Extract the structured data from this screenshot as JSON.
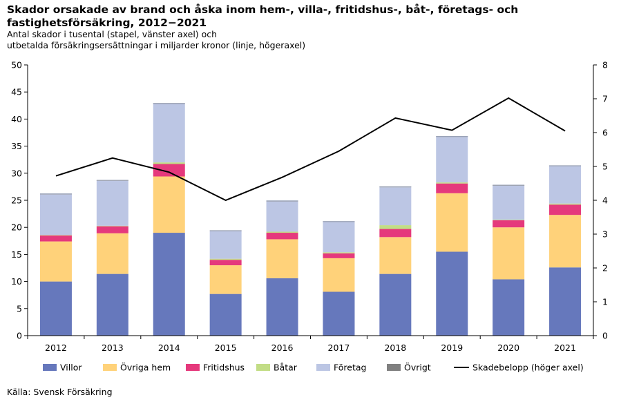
{
  "title": "Skador orsakade av brand och åska inom hem-, villa-, fritidshus-, båt-, företags- och fastighetsförsäkring, 2012−2021",
  "subtitle_line1": "Antal skador i tusental (stapel, vänster axel) och",
  "subtitle_line2": "utbetalda försäkringsersättningar i miljarder kronor (linje, högeraxel)",
  "source": "Källa: Svensk Försäkring",
  "chart_data": {
    "type": "bar",
    "stacked": true,
    "categories": [
      "2012",
      "2013",
      "2014",
      "2015",
      "2016",
      "2017",
      "2018",
      "2019",
      "2020",
      "2021"
    ],
    "ylim": [
      0,
      50
    ],
    "yticks": [
      0,
      5,
      10,
      15,
      20,
      25,
      30,
      35,
      40,
      45,
      50
    ],
    "y2lim": [
      0,
      8
    ],
    "y2ticks": [
      0,
      1,
      2,
      3,
      4,
      5,
      6,
      7,
      8
    ],
    "grid": false,
    "legend_position": "bottom",
    "series": [
      {
        "name": "Villor",
        "color": "#6678bc",
        "values": [
          10.0,
          11.4,
          19.0,
          7.7,
          10.6,
          8.1,
          11.4,
          15.5,
          10.4,
          12.6
        ]
      },
      {
        "name": "Övriga hem",
        "color": "#ffd27a",
        "values": [
          7.4,
          7.5,
          10.4,
          5.3,
          7.2,
          6.2,
          6.8,
          10.8,
          9.6,
          9.7
        ]
      },
      {
        "name": "Fritidshus",
        "color": "#e5397c",
        "values": [
          1.1,
          1.3,
          2.3,
          1.0,
          1.2,
          0.9,
          1.5,
          1.8,
          1.3,
          1.9
        ]
      },
      {
        "name": "Båtar",
        "color": "#c2dd86",
        "values": [
          0.1,
          0.1,
          0.3,
          0.2,
          0.2,
          0.2,
          0.7,
          0.2,
          0.1,
          0.2
        ]
      },
      {
        "name": "Företag",
        "color": "#bcc6e4",
        "values": [
          7.5,
          8.3,
          10.8,
          5.1,
          5.6,
          5.6,
          7.0,
          8.4,
          6.3,
          6.9
        ]
      },
      {
        "name": "Övrigt",
        "color": "#808080",
        "values": [
          0.1,
          0.1,
          0.1,
          0.1,
          0.1,
          0.1,
          0.1,
          0.1,
          0.1,
          0.1
        ]
      }
    ],
    "line": {
      "name": "Skadebelopp (höger axel)",
      "color": "#000000",
      "axis": "right",
      "values": [
        4.72,
        5.25,
        4.83,
        4.0,
        4.68,
        5.45,
        6.43,
        6.07,
        7.02,
        6.05
      ]
    }
  }
}
